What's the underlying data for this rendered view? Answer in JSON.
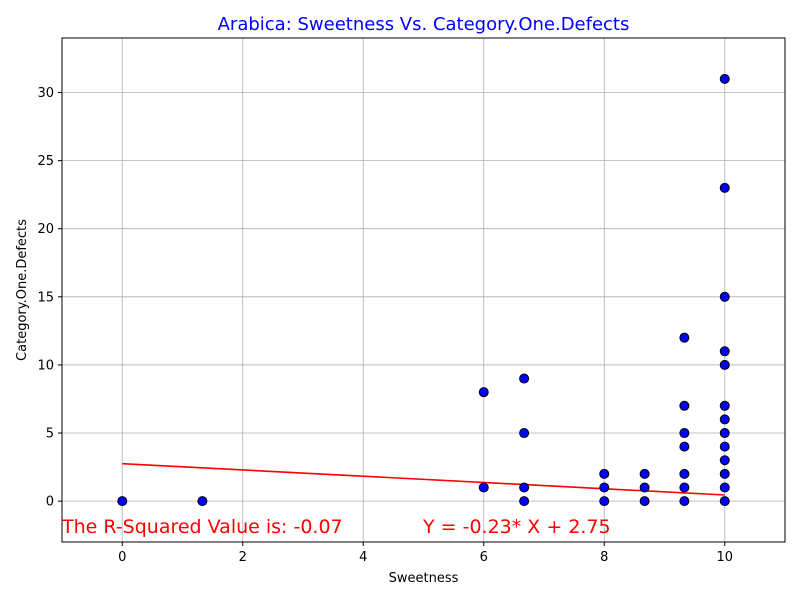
{
  "chart_data": {
    "type": "scatter",
    "title": "Arabica: Sweetness Vs. Category.One.Defects",
    "xlabel": "Sweetness",
    "ylabel": "Category.One.Defects",
    "xlim": [
      -1,
      11
    ],
    "ylim": [
      -3,
      34
    ],
    "xticks": [
      0,
      2,
      4,
      6,
      8,
      10
    ],
    "yticks": [
      0,
      5,
      10,
      15,
      20,
      25,
      30
    ],
    "grid": true,
    "points": [
      [
        0,
        0
      ],
      [
        1.33,
        0
      ],
      [
        6,
        1
      ],
      [
        6,
        8
      ],
      [
        6.67,
        0
      ],
      [
        6.67,
        1
      ],
      [
        6.67,
        5
      ],
      [
        6.67,
        9
      ],
      [
        8,
        0
      ],
      [
        8,
        1
      ],
      [
        8,
        2
      ],
      [
        8.67,
        0
      ],
      [
        8.67,
        1
      ],
      [
        8.67,
        2
      ],
      [
        9.33,
        0
      ],
      [
        9.33,
        1
      ],
      [
        9.33,
        2
      ],
      [
        9.33,
        4
      ],
      [
        9.33,
        5
      ],
      [
        9.33,
        7
      ],
      [
        9.33,
        12
      ],
      [
        10,
        0
      ],
      [
        10,
        1
      ],
      [
        10,
        2
      ],
      [
        10,
        3
      ],
      [
        10,
        4
      ],
      [
        10,
        5
      ],
      [
        10,
        6
      ],
      [
        10,
        7
      ],
      [
        10,
        10
      ],
      [
        10,
        11
      ],
      [
        10,
        15
      ],
      [
        10,
        23
      ],
      [
        10,
        31
      ]
    ],
    "regression": {
      "slope": -0.23,
      "intercept": 2.75,
      "x_range": [
        0,
        10
      ]
    },
    "annotations": {
      "r_squared": "The R-Squared Value is: -0.07",
      "equation": "Y = -0.23* X + 2.75"
    },
    "colors": {
      "title": "#0000ff",
      "marker_fill": "#0000ff",
      "marker_edge": "#000000",
      "regression_line": "#ff0000",
      "annotation": "#ff0000",
      "grid": "#b0b0b0"
    }
  }
}
